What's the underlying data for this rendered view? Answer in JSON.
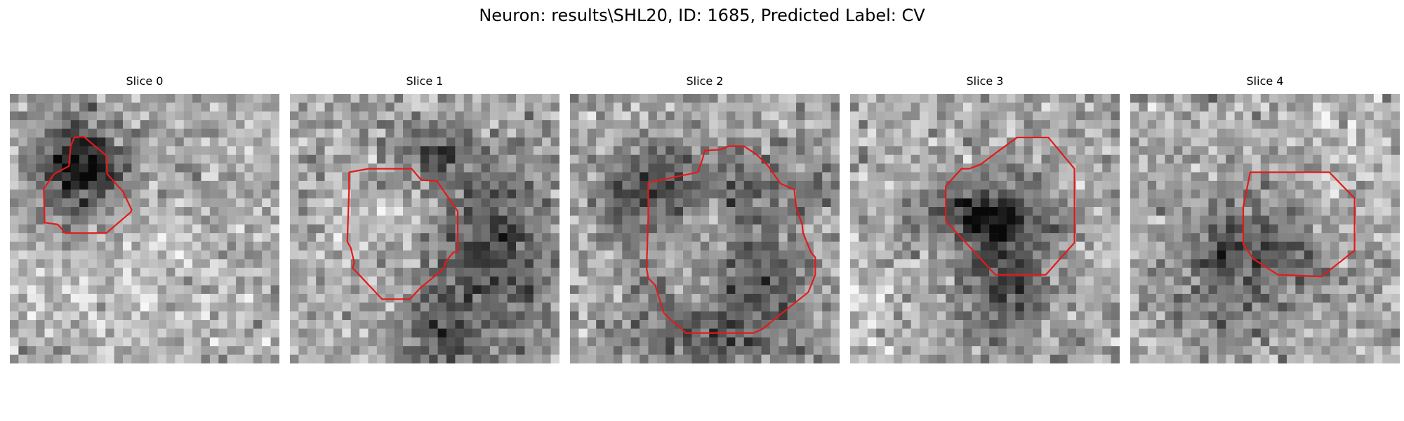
{
  "figure": {
    "title": "Neuron: results\\SHL20, ID: 1685, Predicted Label: CV"
  },
  "colors": {
    "background": "#ffffff",
    "contour": "#e31a1c",
    "colormap": "grayscale"
  },
  "slices": [
    {
      "title": "Slice 0"
    },
    {
      "title": "Slice 1"
    },
    {
      "title": "Slice 2"
    },
    {
      "title": "Slice 3"
    },
    {
      "title": "Slice 4"
    }
  ]
}
